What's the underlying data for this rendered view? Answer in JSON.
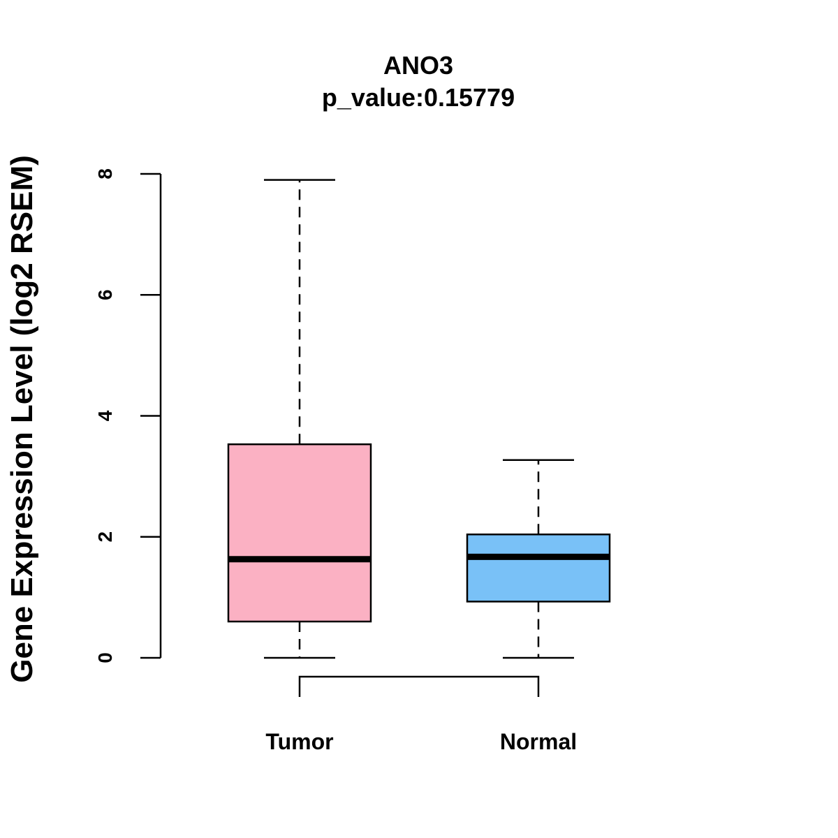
{
  "chart_data": {
    "type": "box",
    "title": "ANO3",
    "subtitle": "p_value:0.15779",
    "xlabel": "",
    "ylabel": "Gene Expression Level (log2 RSEM)",
    "ylim": [
      0,
      8
    ],
    "yticks": [
      0,
      2,
      4,
      6,
      8
    ],
    "grid": false,
    "categories": [
      "Tumor",
      "Normal"
    ],
    "boxes": [
      {
        "name": "Tumor",
        "min": 0,
        "q1": 0.6,
        "median": 1.63,
        "q3": 3.53,
        "max": 7.9,
        "color": "#FBB1C3"
      },
      {
        "name": "Normal",
        "min": 0,
        "q1": 0.93,
        "median": 1.67,
        "q3": 2.04,
        "max": 3.27,
        "color": "#79C1F7"
      }
    ],
    "comparison_bracket": [
      "Tumor",
      "Normal"
    ]
  }
}
